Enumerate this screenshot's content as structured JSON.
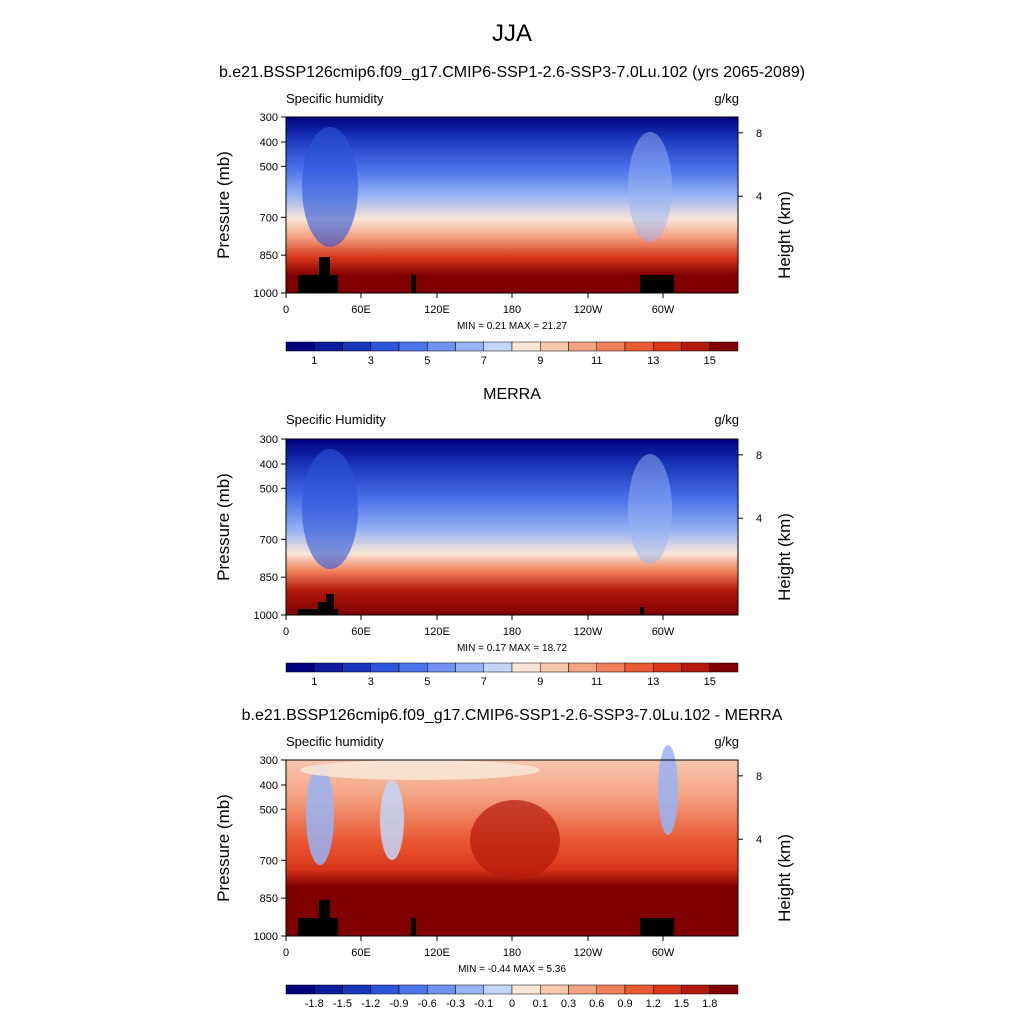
{
  "figure": {
    "title": "JJA"
  },
  "colors": {
    "positive_scale": [
      "#00007f",
      "#0d1a9d",
      "#1a37bb",
      "#2d55d9",
      "#4c74ea",
      "#7193ef",
      "#98b3f3",
      "#c2d6f8",
      "#f9e6d6",
      "#f8c7b0",
      "#f4a384",
      "#f07f5c",
      "#ea5a34",
      "#d9361a",
      "#b31a0d",
      "#800000"
    ],
    "diff_scale": [
      "#00007f",
      "#0d1a9d",
      "#1a37bb",
      "#2d55d9",
      "#4c74ea",
      "#7193ef",
      "#98b3f3",
      "#c2d6f8",
      "#f9e6d6",
      "#f8c7b0",
      "#f4a384",
      "#f07f5c",
      "#ea5a34",
      "#d9361a",
      "#b31a0d",
      "#800000"
    ],
    "terrain": "#000000"
  },
  "chart_data": [
    {
      "type": "heatmap",
      "panel_title": "b.e21.BSSP126cmip6.f09_g17.CMIP6-SSP1-2.6-SSP3-7.0Lu.102 (yrs 2065-2089)",
      "left_title": "Specific humidity",
      "right_title": "g/kg",
      "ylabel": "Pressure (mb)",
      "y2label": "Height (km)",
      "y_ticks": [
        "300",
        "400",
        "500",
        "700",
        "850",
        "1000"
      ],
      "y2_ticks": [
        "8",
        "4"
      ],
      "x_ticks": [
        "0",
        "60E",
        "120E",
        "180",
        "120W",
        "60W"
      ],
      "min_label": "MIN =  0.21  MAX =  21.27",
      "colorbar_labels": [
        "1",
        "3",
        "5",
        "7",
        "9",
        "11",
        "13",
        "15"
      ]
    },
    {
      "type": "heatmap",
      "panel_title": "MERRA",
      "left_title": "Specific Humidity",
      "right_title": "g/kg",
      "ylabel": "Pressure (mb)",
      "y2label": "Height (km)",
      "y_ticks": [
        "300",
        "400",
        "500",
        "700",
        "850",
        "1000"
      ],
      "y2_ticks": [
        "8",
        "4"
      ],
      "x_ticks": [
        "0",
        "60E",
        "120E",
        "180",
        "120W",
        "60W"
      ],
      "min_label": "MIN =  0.17  MAX =  18.72",
      "colorbar_labels": [
        "1",
        "3",
        "5",
        "7",
        "9",
        "11",
        "13",
        "15"
      ]
    },
    {
      "type": "heatmap",
      "panel_title": "b.e21.BSSP126cmip6.f09_g17.CMIP6-SSP1-2.6-SSP3-7.0Lu.102 - MERRA",
      "left_title": "Specific humidity",
      "right_title": "g/kg",
      "ylabel": "Pressure (mb)",
      "y2label": "Height (km)",
      "y_ticks": [
        "300",
        "400",
        "500",
        "700",
        "850",
        "1000"
      ],
      "y2_ticks": [
        "8",
        "4"
      ],
      "x_ticks": [
        "0",
        "60E",
        "120E",
        "180",
        "120W",
        "60W"
      ],
      "min_label": "MIN = -0.44  MAX =  5.36",
      "colorbar_labels": [
        "-1.8",
        "-1.5",
        "-1.2",
        "-0.9",
        "-0.6",
        "-0.3",
        "-0.1",
        "0",
        "0.1",
        "0.3",
        "0.6",
        "0.9",
        "1.2",
        "1.5",
        "1.8"
      ]
    }
  ]
}
